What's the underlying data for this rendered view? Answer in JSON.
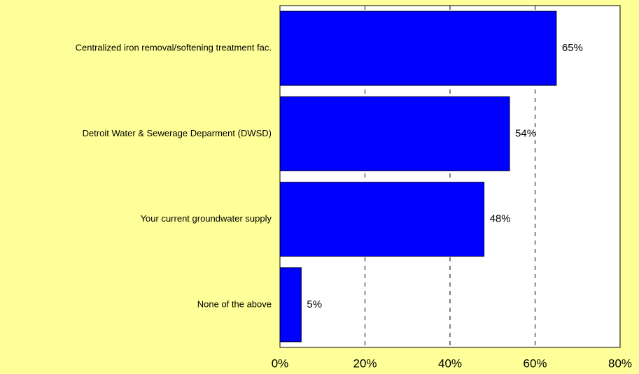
{
  "chart_data": {
    "type": "bar",
    "orientation": "horizontal",
    "categories": [
      "Centralized iron removal/softening treatment fac.",
      "Detroit Water & Sewerage Deparment (DWSD)",
      "Your current groundwater supply",
      "None of the above"
    ],
    "values": [
      65,
      54,
      48,
      5
    ],
    "value_labels": [
      "65%",
      "54%",
      "48%",
      "5%"
    ],
    "color": "#0000ff",
    "xlim": [
      0,
      80
    ],
    "xticks": [
      {
        "value": 0,
        "label": "0%"
      },
      {
        "value": 20,
        "label": "20%"
      },
      {
        "value": 40,
        "label": "40%"
      },
      {
        "value": 60,
        "label": "60%"
      },
      {
        "value": 80,
        "label": "80%"
      }
    ],
    "grid": true
  }
}
